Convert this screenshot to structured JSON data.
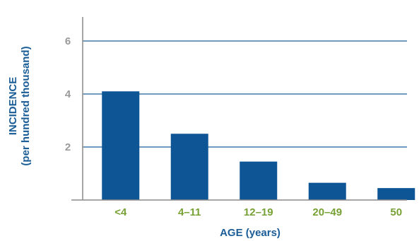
{
  "chart_data": {
    "type": "bar",
    "categories": [
      "<4",
      "4–11",
      "12–19",
      "20–49",
      "50"
    ],
    "values": [
      4.1,
      2.5,
      1.45,
      0.65,
      0.45
    ],
    "title": "",
    "xlabel": "AGE (years)",
    "ylabel_line1": "INCIDENCE",
    "ylabel_line2": "(per hundred thousand)",
    "ylim": [
      0,
      6.9
    ],
    "yticks": [
      2,
      4,
      6
    ],
    "ytick_labels": [
      "2",
      "4",
      "6"
    ],
    "grid": true,
    "legend": "none"
  },
  "colors": {
    "bar": "#0e5596",
    "gridline": "#1b5d97",
    "axis": "#8a8a8a",
    "ytick_text": "#9a9a9a",
    "xtick_text": "#77a134",
    "axis_title": "#1b5d97"
  }
}
